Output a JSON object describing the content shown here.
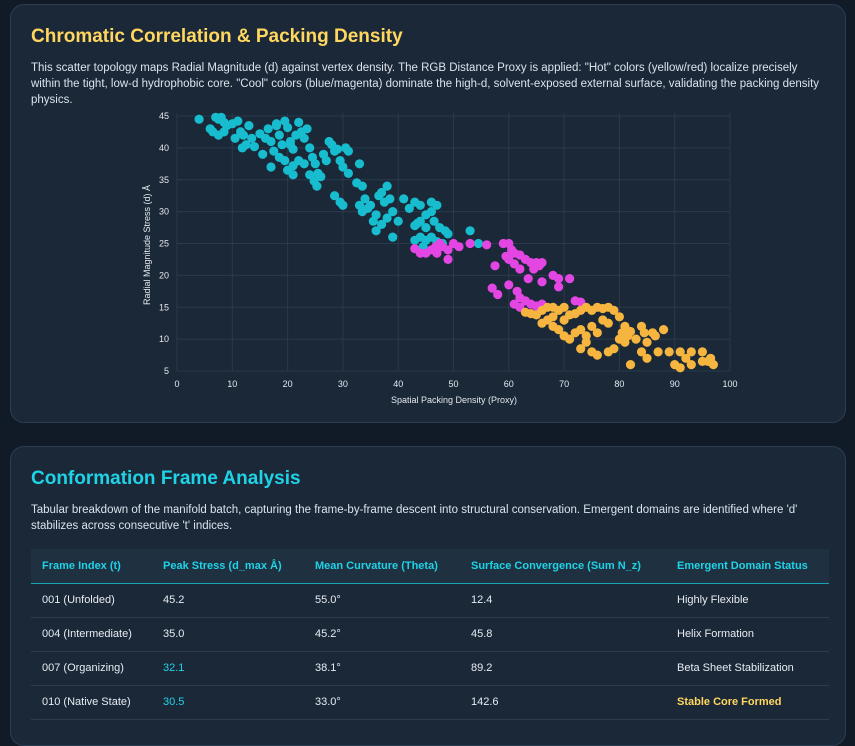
{
  "chart_section": {
    "title": "Chromatic Correlation & Packing Density",
    "description": "This scatter topology maps Radial Magnitude (d) against vertex density. The RGB Distance Proxy is applied: \"Hot\" colors (yellow/red) localize precisely within the tight, low-d hydrophobic core. \"Cool\" colors (blue/magenta) dominate the high-d, solvent-exposed external surface, validating the packing density physics."
  },
  "chart_data": {
    "type": "scatter",
    "xlabel": "Spatial Packing Density (Proxy)",
    "ylabel": "Radial Magnitude Stress (d) Å",
    "xlim": [
      0,
      100
    ],
    "ylim": [
      5,
      45
    ],
    "xticks": [
      0,
      10,
      20,
      30,
      40,
      50,
      60,
      70,
      80,
      90,
      100
    ],
    "yticks": [
      5,
      10,
      15,
      20,
      25,
      30,
      35,
      40,
      45
    ],
    "grid": true,
    "colors": {
      "cyan": "#17bccf",
      "magenta": "#e346e3",
      "gold": "#f5b53f"
    },
    "series": [
      {
        "color": "cyan",
        "points": [
          [
            4,
            44.5
          ],
          [
            6,
            43
          ],
          [
            7,
            44.8
          ],
          [
            7.5,
            44.5
          ],
          [
            8,
            44.8
          ],
          [
            8.5,
            44
          ],
          [
            9,
            43.5
          ],
          [
            6.5,
            42.5
          ],
          [
            7.5,
            42
          ],
          [
            8.5,
            42.5
          ],
          [
            10,
            43.8
          ],
          [
            11,
            44.2
          ],
          [
            11.5,
            42.5
          ],
          [
            12,
            42
          ],
          [
            12.5,
            40.5
          ],
          [
            10.5,
            41.5
          ],
          [
            11.8,
            40
          ],
          [
            13,
            43.5
          ],
          [
            13.5,
            41.5
          ],
          [
            14,
            40.2
          ],
          [
            15,
            42.2
          ],
          [
            15.5,
            39
          ],
          [
            16,
            41.5
          ],
          [
            16.5,
            43
          ],
          [
            17,
            41
          ],
          [
            17.5,
            39.5
          ],
          [
            18,
            43.5
          ],
          [
            18.5,
            42
          ],
          [
            19,
            40.5
          ],
          [
            19.5,
            44.2
          ],
          [
            20,
            43.2
          ],
          [
            20.5,
            41
          ],
          [
            21,
            39.8
          ],
          [
            21.5,
            42
          ],
          [
            22,
            44
          ],
          [
            22.5,
            42.5
          ],
          [
            23,
            41.5
          ],
          [
            23.5,
            43
          ],
          [
            24,
            40
          ],
          [
            24.5,
            38.5
          ],
          [
            25,
            37.5
          ],
          [
            25.5,
            36
          ],
          [
            26,
            35.5
          ],
          [
            26.5,
            39
          ],
          [
            27,
            38
          ],
          [
            27.5,
            41
          ],
          [
            28,
            40.5
          ],
          [
            28.5,
            39.5
          ],
          [
            29,
            39.8
          ],
          [
            29.5,
            38
          ],
          [
            30,
            37
          ],
          [
            30.5,
            40
          ],
          [
            28.5,
            32.5
          ],
          [
            29.5,
            31.5
          ],
          [
            30,
            31
          ],
          [
            31,
            39.5
          ],
          [
            17,
            37
          ],
          [
            18.5,
            38.5
          ],
          [
            19.5,
            38
          ],
          [
            20,
            36.5
          ],
          [
            21,
            37.2
          ],
          [
            22,
            38
          ],
          [
            23,
            37.5
          ],
          [
            24,
            35.8
          ],
          [
            24.8,
            34.8
          ],
          [
            25.3,
            34
          ],
          [
            33,
            37.5
          ],
          [
            32.5,
            34.5
          ],
          [
            33.5,
            34
          ],
          [
            34,
            32
          ],
          [
            33,
            31
          ],
          [
            33.5,
            30
          ],
          [
            34.5,
            30.5
          ],
          [
            35,
            31
          ],
          [
            36,
            29.5
          ],
          [
            35.5,
            28.5
          ],
          [
            36.5,
            32.5
          ],
          [
            37,
            33
          ],
          [
            37.5,
            31.5
          ],
          [
            38,
            34
          ],
          [
            38.5,
            32
          ],
          [
            39,
            30
          ],
          [
            38,
            29
          ],
          [
            37,
            28
          ],
          [
            40,
            28.5
          ],
          [
            41,
            32
          ],
          [
            42,
            30.5
          ],
          [
            43,
            31.5
          ],
          [
            44,
            31
          ],
          [
            45,
            29.5
          ],
          [
            46,
            31.5
          ],
          [
            47,
            31
          ],
          [
            46,
            30
          ],
          [
            44,
            28.5
          ],
          [
            45,
            27.5
          ],
          [
            46.5,
            28.5
          ],
          [
            47.5,
            27.5
          ],
          [
            48.5,
            27
          ],
          [
            49,
            26.5
          ],
          [
            46,
            26
          ],
          [
            45,
            25.5
          ],
          [
            47,
            25.3
          ],
          [
            44,
            26
          ],
          [
            43,
            25.5
          ],
          [
            44.5,
            24.5
          ],
          [
            48,
            25
          ],
          [
            53,
            27
          ],
          [
            54.5,
            25
          ],
          [
            36,
            27
          ],
          [
            39,
            26
          ],
          [
            43.5,
            28.2
          ],
          [
            43,
            27.8
          ],
          [
            31,
            36
          ],
          [
            21,
            35.8
          ],
          [
            18,
            43.8
          ],
          [
            20.5,
            40.5
          ]
        ]
      },
      {
        "color": "magenta",
        "points": [
          [
            43,
            24.2
          ],
          [
            44,
            23.5
          ],
          [
            45,
            23.5
          ],
          [
            46,
            24
          ],
          [
            46.8,
            24.5
          ],
          [
            47.5,
            25
          ],
          [
            48,
            24.5
          ],
          [
            49,
            24
          ],
          [
            50,
            25
          ],
          [
            51,
            24.5
          ],
          [
            47,
            23.5
          ],
          [
            49,
            22.5
          ],
          [
            53,
            25
          ],
          [
            56,
            24.8
          ],
          [
            57.5,
            21.5
          ],
          [
            59,
            25
          ],
          [
            60,
            25
          ],
          [
            60.5,
            24
          ],
          [
            59.5,
            23
          ],
          [
            61,
            23.5
          ],
          [
            62,
            23.2
          ],
          [
            63,
            22.5
          ],
          [
            64,
            22
          ],
          [
            65,
            22
          ],
          [
            65.5,
            21.5
          ],
          [
            66,
            22
          ],
          [
            64.5,
            21
          ],
          [
            60,
            22.5
          ],
          [
            61,
            21.8
          ],
          [
            62,
            21
          ],
          [
            63.5,
            19.5
          ],
          [
            66,
            19
          ],
          [
            68,
            20
          ],
          [
            69,
            19.5
          ],
          [
            71,
            19.5
          ],
          [
            57,
            18
          ],
          [
            58,
            17
          ],
          [
            61.5,
            17.5
          ],
          [
            62,
            16.5
          ],
          [
            63,
            16
          ],
          [
            64,
            15.5
          ],
          [
            65,
            15.2
          ],
          [
            66,
            15.5
          ],
          [
            61,
            15.5
          ],
          [
            62,
            15
          ],
          [
            60,
            18.5
          ],
          [
            72,
            16
          ],
          [
            73,
            15.8
          ],
          [
            69,
            18.2
          ]
        ]
      },
      {
        "color": "gold",
        "points": [
          [
            63,
            14.2
          ],
          [
            64,
            14
          ],
          [
            65,
            13.8
          ],
          [
            66,
            14.5
          ],
          [
            67,
            15
          ],
          [
            68,
            15
          ],
          [
            69,
            14.5
          ],
          [
            70,
            15
          ],
          [
            71,
            13.8
          ],
          [
            72,
            14
          ],
          [
            73,
            14.5
          ],
          [
            74,
            15
          ],
          [
            75,
            14.5
          ],
          [
            76,
            15
          ],
          [
            77,
            14.8
          ],
          [
            78,
            15
          ],
          [
            79,
            14.5
          ],
          [
            80,
            13.5
          ],
          [
            81,
            12
          ],
          [
            80.5,
            11
          ],
          [
            81.5,
            10.5
          ],
          [
            82,
            11.2
          ],
          [
            80,
            10
          ],
          [
            81,
            9.5
          ],
          [
            79,
            8.5
          ],
          [
            78,
            8
          ],
          [
            76,
            7.5
          ],
          [
            75,
            8
          ],
          [
            73,
            8.5
          ],
          [
            71,
            10
          ],
          [
            70,
            10.5
          ],
          [
            72,
            11
          ],
          [
            73,
            11.5
          ],
          [
            74,
            10.5
          ],
          [
            75,
            12
          ],
          [
            76,
            11
          ],
          [
            77,
            13
          ],
          [
            78,
            12.5
          ],
          [
            74,
            9.5
          ],
          [
            69,
            11.5
          ],
          [
            68,
            12
          ],
          [
            67,
            13
          ],
          [
            68,
            13.5
          ],
          [
            70,
            13
          ],
          [
            66,
            12.5
          ],
          [
            84,
            12
          ],
          [
            84.5,
            11
          ],
          [
            86,
            11
          ],
          [
            86.5,
            10.5
          ],
          [
            88,
            11.5
          ],
          [
            85,
            9.5
          ],
          [
            87,
            8
          ],
          [
            89,
            8
          ],
          [
            91,
            8
          ],
          [
            93,
            8
          ],
          [
            92,
            7
          ],
          [
            90,
            6
          ],
          [
            91,
            5.5
          ],
          [
            93,
            6
          ],
          [
            95,
            6.5
          ],
          [
            96,
            6.5
          ],
          [
            96.5,
            7
          ],
          [
            97,
            6
          ],
          [
            95,
            8
          ],
          [
            83,
            10
          ],
          [
            84,
            8
          ],
          [
            82,
            6
          ],
          [
            85,
            7
          ]
        ]
      }
    ]
  },
  "table_section": {
    "title": "Conformation Frame Analysis",
    "description": "Tabular breakdown of the manifold batch, capturing the frame-by-frame descent into structural conservation. Emergent domains are identified where 'd' stabilizes across consecutive 't' indices.",
    "headers": [
      "Frame Index (t)",
      "Peak Stress (d_max Å)",
      "Mean Curvature (Theta)",
      "Surface Convergence (Sum N_z)",
      "Emergent Domain Status"
    ],
    "rows": [
      [
        "001 (Unfolded)",
        "45.2",
        "55.0°",
        "12.4",
        "Highly Flexible"
      ],
      [
        "004 (Intermediate)",
        "35.0",
        "45.2°",
        "45.8",
        "Helix Formation"
      ],
      [
        "007 (Organizing)",
        "32.1",
        "38.1°",
        "89.2",
        "Beta Sheet Stabilization"
      ],
      [
        "010 (Native State)",
        "30.5",
        "33.0°",
        "142.6",
        "Stable Core Formed"
      ]
    ]
  }
}
